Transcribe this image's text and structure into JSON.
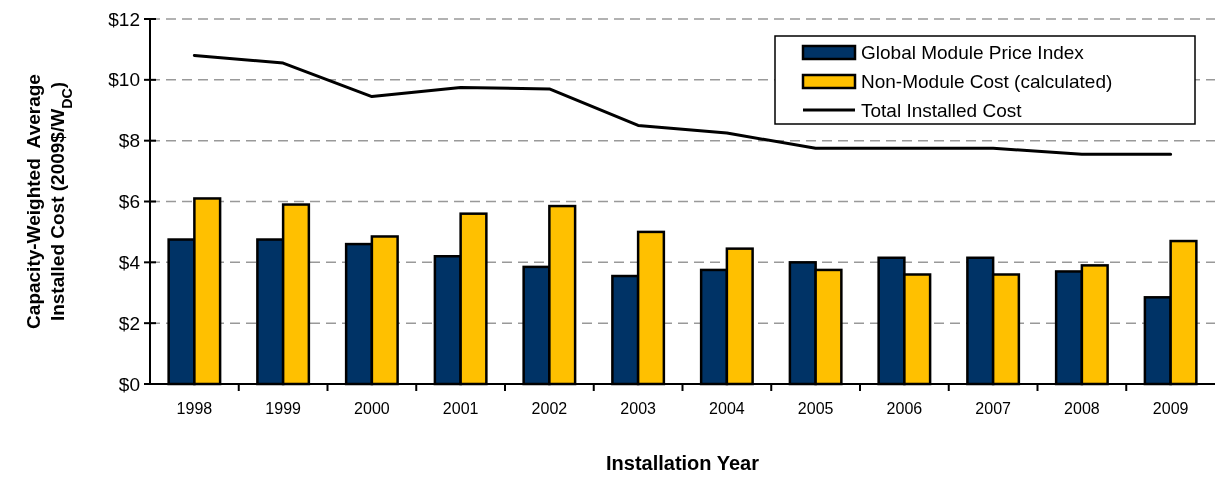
{
  "chart_data": {
    "type": "bar",
    "xlabel": "Installation Year",
    "ylabel": "Capacity-Weighted  Average\nInstalled Cost (2009$/W$_{DC}$)",
    "categories": [
      "1998",
      "1999",
      "2000",
      "2001",
      "2002",
      "2003",
      "2004",
      "2005",
      "2006",
      "2007",
      "2008",
      "2009"
    ],
    "series": [
      {
        "name": "Global Module Price Index",
        "color": "#003366",
        "values": [
          4.75,
          4.75,
          4.6,
          4.2,
          3.85,
          3.55,
          3.75,
          4.0,
          4.15,
          4.15,
          3.7,
          2.85
        ]
      },
      {
        "name": "Non-Module Cost (calculated)",
        "color": "#ffc000",
        "values": [
          6.1,
          5.9,
          4.85,
          5.6,
          5.85,
          5.0,
          4.45,
          3.75,
          3.6,
          3.6,
          3.9,
          4.7
        ]
      },
      {
        "name": "Total Installed Cost",
        "type": "line",
        "color": "#000000",
        "values": [
          10.8,
          10.55,
          9.45,
          9.75,
          9.7,
          8.5,
          8.25,
          7.75,
          7.75,
          7.75,
          7.55,
          7.55
        ]
      }
    ],
    "ylim": [
      0,
      12
    ],
    "yticks": [
      {
        "value": 0,
        "label": "$0"
      },
      {
        "value": 2,
        "label": "$2"
      },
      {
        "value": 4,
        "label": "$4"
      },
      {
        "value": 6,
        "label": "$6"
      },
      {
        "value": 8,
        "label": "$8"
      },
      {
        "value": 10,
        "label": "$10"
      },
      {
        "value": 12,
        "label": "$12"
      }
    ],
    "grid": "y",
    "legend": "top right"
  }
}
